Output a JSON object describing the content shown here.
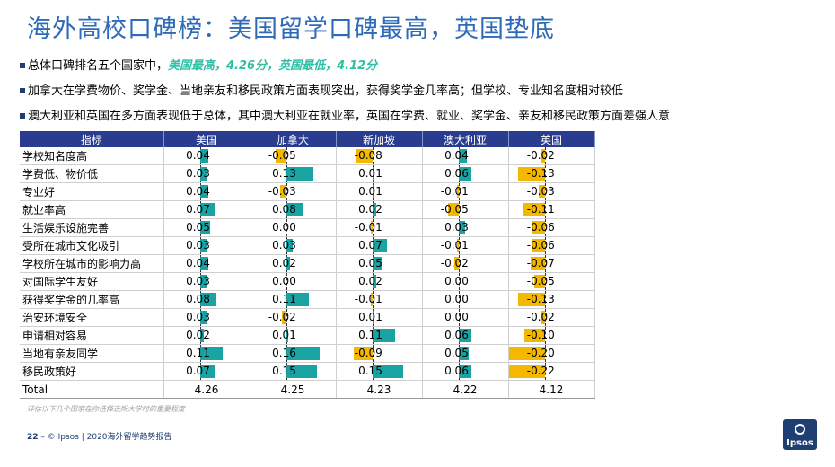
{
  "title": "海外高校口碑榜：美国留学口碑最高，英国垫底",
  "bullets": [
    {
      "text": "总体口碑排名五个国家中，",
      "highlight": "美国最高，4.26分，英国最低，4.12分"
    },
    {
      "text": "加拿大在学费物价、奖学金、当地亲友和移民政策方面表现突出，获得奖学金几率高；但学校、专业知名度相对较低",
      "highlight": ""
    },
    {
      "text": "澳大利亚和英国在多方面表现低于总体，其中澳大利亚在就业率，英国在学费、就业、奖学金、亲友和移民政策方面差强人意",
      "highlight": ""
    }
  ],
  "table": {
    "headers": [
      "指标",
      "美国",
      "加拿大",
      "新加坡",
      "澳大利亚",
      "英国"
    ],
    "rows": [
      {
        "label": "学校知名度高",
        "values": [
          "0.04",
          "-0.05",
          "-0.08",
          "0.04",
          "-0.02"
        ]
      },
      {
        "label": "学费低、物价低",
        "values": [
          "0.03",
          "0.13",
          "0.01",
          "0.06",
          "-0.13"
        ]
      },
      {
        "label": "专业好",
        "values": [
          "0.04",
          "-0.03",
          "0.01",
          "-0.01",
          "-0.03"
        ]
      },
      {
        "label": "就业率高",
        "values": [
          "0.07",
          "0.08",
          "0.02",
          "-0.05",
          "-0.11"
        ]
      },
      {
        "label": "生活娱乐设施完善",
        "values": [
          "0.05",
          "0.00",
          "-0.01",
          "0.03",
          "-0.06"
        ]
      },
      {
        "label": "受所在城市文化吸引",
        "values": [
          "0.03",
          "0.03",
          "0.07",
          "-0.01",
          "-0.06"
        ]
      },
      {
        "label": "学校所在城市的影响力高",
        "values": [
          "0.04",
          "0.02",
          "0.05",
          "-0.02",
          "-0.07"
        ]
      },
      {
        "label": "对国际学生友好",
        "values": [
          "0.03",
          "0.00",
          "0.02",
          "0.00",
          "-0.05"
        ]
      },
      {
        "label": "获得奖学金的几率高",
        "values": [
          "0.08",
          "0.11",
          "-0.01",
          "0.00",
          "-0.13"
        ]
      },
      {
        "label": "治安环境安全",
        "values": [
          "0.03",
          "-0.02",
          "0.01",
          "0.00",
          "-0.02"
        ]
      },
      {
        "label": "申请相对容易",
        "values": [
          "0.02",
          "0.01",
          "0.11",
          "0.06",
          "-0.10"
        ]
      },
      {
        "label": "当地有亲友同学",
        "values": [
          "0.11",
          "0.16",
          "-0.09",
          "0.05",
          "-0.20"
        ]
      },
      {
        "label": "移民政策好",
        "values": [
          "0.07",
          "0.15",
          "0.15",
          "0.06",
          "-0.22"
        ]
      }
    ],
    "total": {
      "label": "Total",
      "values": [
        "4.26",
        "4.25",
        "4.23",
        "4.22",
        "4.12"
      ]
    },
    "colors": {
      "positive": "#1aa3a3",
      "negative": "#f5b800",
      "header": "#2a3c8f"
    }
  },
  "note": "评估以下几个国家在你选择选所大学时的重要程度",
  "footer": {
    "page": "22",
    "text": "© Ipsos | 2020海外留学趋势报告"
  },
  "logo": {
    "text": "Ipsos"
  }
}
